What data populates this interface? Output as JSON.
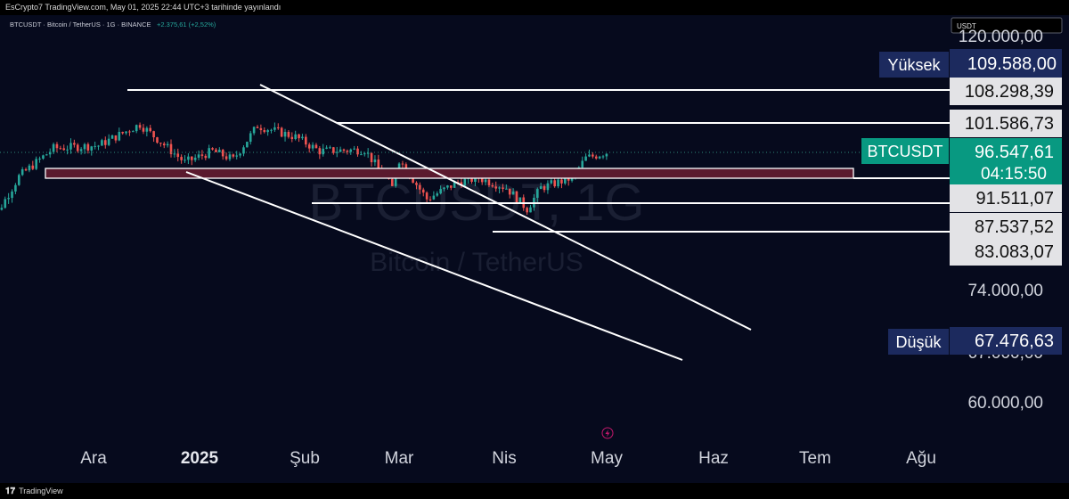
{
  "header": {
    "published": "EsCrypto7 TradingView.com, May 01, 2025 22:44 UTC+3 tarihinde yayınlandı"
  },
  "legend": {
    "symbol_line": "BTCUSDT · Bitcoin / TetherUS · 1G · BINANCE",
    "change": "+2.375,61 (+2,52%)"
  },
  "currency_box": "USDT",
  "watermark": {
    "ticker": "BTCUSDT, 1G",
    "name": "Bitcoin / TetherUS"
  },
  "footer": {
    "brand": "TradingView"
  },
  "colors": {
    "bullish": "#26a69a",
    "bearish": "#ef5350",
    "background": "#060a1d",
    "high_low_label": "#1c2a5e",
    "current_price": "#089981",
    "zone": "#5a1a2e"
  },
  "chart_data": {
    "type": "candlestick",
    "title": "BTCUSDT · Bitcoin / TetherUS · 1G · BINANCE",
    "ylim": [
      54000,
      121000
    ],
    "x_ticks": [
      "Ara",
      "2025",
      "Şub",
      "Mar",
      "Nis",
      "May",
      "Haz",
      "Tem",
      "Ağu"
    ],
    "y_ticks": [
      "120.000,00",
      "74.000,00",
      "67.000,00",
      "60.000,00"
    ],
    "high": {
      "label": "Yüksek",
      "value": "109.588,00"
    },
    "low": {
      "label": "Düşük",
      "value": "67.476,63"
    },
    "current": {
      "symbol": "BTCUSDT",
      "price": "96.547,61",
      "countdown": "04:15:50"
    },
    "levels": [
      "108.298,39",
      "101.586,73",
      "91.511,07",
      "87.537,52",
      "83.083,07"
    ],
    "series": [
      {
        "name": "BTCUSDT",
        "type": "candlestick",
        "waypoints": [
          [
            "2024-11-12",
            88000
          ],
          [
            "2024-11-22",
            98000
          ],
          [
            "2024-12-05",
            99000
          ],
          [
            "2024-12-17",
            106500
          ],
          [
            "2024-12-30",
            93000
          ],
          [
            "2025-01-07",
            97000
          ],
          [
            "2025-01-13",
            94000
          ],
          [
            "2025-01-20",
            106000
          ],
          [
            "2025-01-31",
            102000
          ],
          [
            "2025-02-07",
            97000
          ],
          [
            "2025-02-20",
            97500
          ],
          [
            "2025-02-28",
            84000
          ],
          [
            "2025-03-02",
            94000
          ],
          [
            "2025-03-10",
            80000
          ],
          [
            "2025-03-19",
            86000
          ],
          [
            "2025-03-25",
            87500
          ],
          [
            "2025-04-02",
            84000
          ],
          [
            "2025-04-08",
            76500
          ],
          [
            "2025-04-12",
            84000
          ],
          [
            "2025-04-21",
            87500
          ],
          [
            "2025-04-25",
            94500
          ],
          [
            "2025-05-01",
            96547
          ]
        ]
      }
    ],
    "trendlines": [
      {
        "from": [
          "2025-01-22",
          109000
        ],
        "to": [
          "2025-06-30",
          73000
        ]
      },
      {
        "from": [
          "2025-01-02",
          92000
        ],
        "to": [
          "2025-06-26",
          64500
        ]
      }
    ],
    "zone": {
      "from_date": "2024-11-05",
      "to_date": "2025-09-01",
      "low": 92800,
      "high": 95000
    },
    "grid": false
  }
}
